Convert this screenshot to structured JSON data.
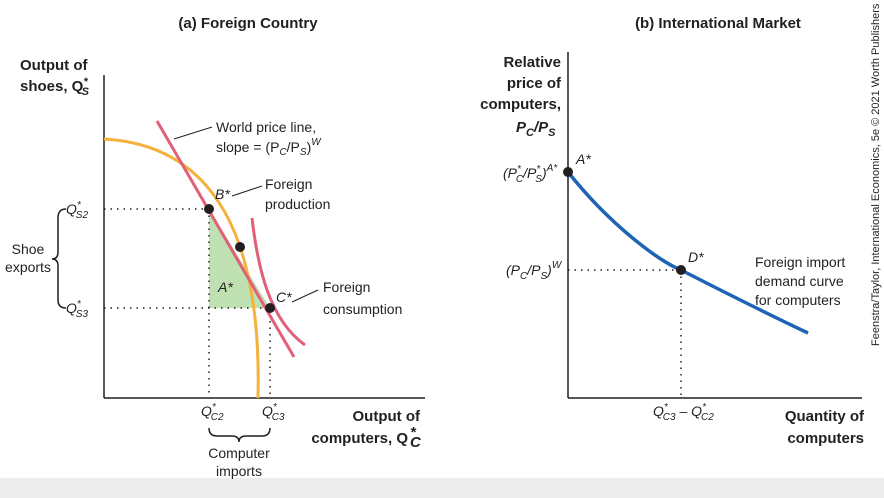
{
  "panel_a": {
    "title": "(a) Foreign Country",
    "y_axis_line1": "Output of",
    "y_axis_line2": "shoes, Q",
    "y_axis_sup": "*",
    "y_axis_sub": "S",
    "x_axis_line1": "Output of",
    "x_axis_line2": "computers, Q",
    "x_axis_sup": "*",
    "x_axis_sub": "C",
    "world_price_line1": "World price line,",
    "world_price_line2": "slope = (P",
    "world_price_sub_c": "C",
    "world_price_mid": "/P",
    "world_price_sub_s": "S",
    "world_price_end": ")",
    "world_price_sup": "W",
    "point_b": "B*",
    "point_a": "A*",
    "point_c": "C*",
    "foreign_production_1": "Foreign",
    "foreign_production_2": "production",
    "foreign_consumption_1": "Foreign",
    "foreign_consumption_2": "consumption",
    "shoe_exports_1": "Shoe",
    "shoe_exports_2": "exports",
    "computer_imports_1": "Computer",
    "computer_imports_2": "imports",
    "tick_q_s2_main": "Q",
    "tick_q_s2_sup": "*",
    "tick_q_s2_sub": "S2",
    "tick_q_s3_main": "Q",
    "tick_q_s3_sup": "*",
    "tick_q_s3_sub": "S3",
    "tick_q_c2_main": "Q",
    "tick_q_c2_sup": "*",
    "tick_q_c2_sub": "C2",
    "tick_q_c3_main": "Q",
    "tick_q_c3_sup": "*",
    "tick_q_c3_sub": "C3"
  },
  "panel_b": {
    "title": "(b) International Market",
    "y_axis_line1": "Relative",
    "y_axis_line2": "price of",
    "y_axis_line3": "computers,",
    "y_axis_line4_p1": "P",
    "y_axis_line4_sub1": "C",
    "y_axis_line4_slash": "/P",
    "y_axis_line4_sub2": "S",
    "x_axis_line1": "Quantity of",
    "x_axis_line2": "computers",
    "point_a": "A*",
    "point_d": "D*",
    "tick_pa_open": "(P",
    "tick_pa_sup1": "*",
    "tick_pa_sub1": "C",
    "tick_pa_mid": "/P",
    "tick_pa_sup2": "*",
    "tick_pa_sub2": "S",
    "tick_pa_close": ")",
    "tick_pa_sup3": "A*",
    "tick_pw_open": "(P",
    "tick_pw_sub1": "C",
    "tick_pw_mid": "/P",
    "tick_pw_sub2": "S",
    "tick_pw_close": ")",
    "tick_pw_sup": "W",
    "tick_q_diff_q1": "Q",
    "tick_q_diff_sup1": "*",
    "tick_q_diff_sub1": "C3",
    "tick_q_diff_minus": " – Q",
    "tick_q_diff_sup2": "*",
    "tick_q_diff_sub2": "C2",
    "demand_label_1": "Foreign import",
    "demand_label_2": "demand curve",
    "demand_label_3": "for computers"
  },
  "credit": "Feenstra/Taylor, International Economics, 5e © 2021 Worth Publishers",
  "colors": {
    "ppf": "#f6b13c",
    "price_line": "#e0607a",
    "demand": "#1e64b4",
    "trade_triangle": "#bfe0b0",
    "axis": "#231f20"
  }
}
